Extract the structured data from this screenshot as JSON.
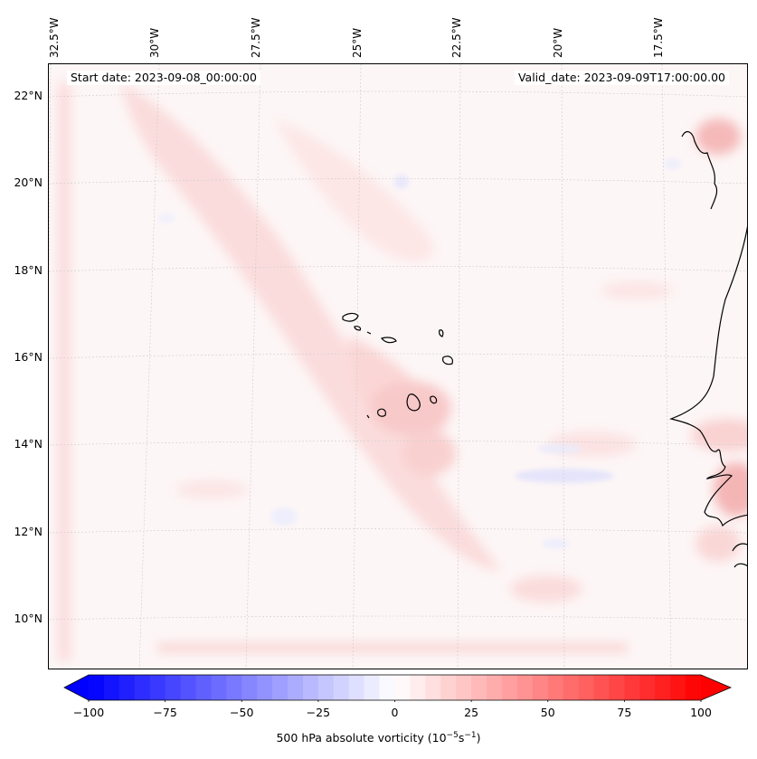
{
  "map": {
    "start_date": "Start date: 2023-09-08_00:00:00",
    "valid_date": "Valid_date: 2023-09-09T17:00:00.00",
    "lon_labels": [
      "32.5°W",
      "30°W",
      "27.5°W",
      "25°W",
      "22.5°W",
      "20°W",
      "17.5°W"
    ],
    "lat_labels": [
      "22°N",
      "20°N",
      "18°N",
      "16°N",
      "14°N",
      "12°N",
      "10°N"
    ],
    "land_features": [
      "west-african-coastline",
      "cape-verde-islands"
    ],
    "colormap": "bwr"
  },
  "colorbar": {
    "ticks": [
      "−100",
      "−75",
      "−50",
      "−25",
      "0",
      "25",
      "50",
      "75",
      "100"
    ],
    "label_main": "500 hPa absolute vorticity (10",
    "label_exp1": "−5",
    "label_mid": "s",
    "label_exp2": "−1",
    "label_end": ")",
    "range": [
      -100,
      100
    ],
    "extend": "both",
    "min_color": "#0000ff",
    "mid_color": "#ffffff",
    "max_color": "#ff0000"
  }
}
